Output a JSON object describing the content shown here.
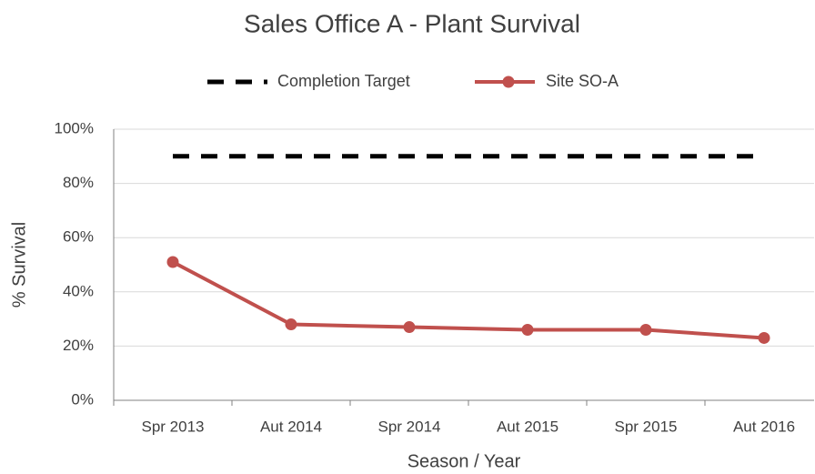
{
  "chart_data": {
    "type": "line",
    "title": "Sales Office A - Plant Survival",
    "x_label": "Season / Year",
    "y_label": "% Survival",
    "categories": [
      "Spr 2013",
      "Aut 2014",
      "Spr 2014",
      "Aut 2015",
      "Spr 2015",
      "Aut 2016"
    ],
    "series": [
      {
        "name": "Completion Target",
        "color": "#000000",
        "dashed": true,
        "markers": false,
        "values": [
          90,
          90,
          90,
          90,
          90,
          90
        ]
      },
      {
        "name": "Site SO-A",
        "color": "#c0504d",
        "dashed": false,
        "markers": true,
        "values": [
          51,
          28,
          27,
          26,
          26,
          23
        ]
      }
    ],
    "ylim": [
      0,
      100
    ],
    "yticks": [
      {
        "value": 0,
        "label": "0%"
      },
      {
        "value": 20,
        "label": "20%"
      },
      {
        "value": 40,
        "label": "40%"
      },
      {
        "value": 60,
        "label": "60%"
      },
      {
        "value": 80,
        "label": "80%"
      },
      {
        "value": 100,
        "label": "100%"
      }
    ],
    "grid": true,
    "legend": "top"
  }
}
